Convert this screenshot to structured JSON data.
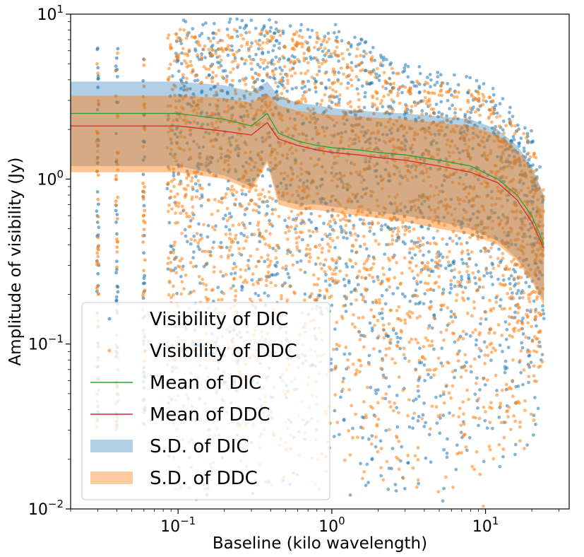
{
  "chart_data": {
    "type": "scatter",
    "xscale": "log",
    "yscale": "log",
    "xlabel": "Baseline (kilo wavelength)",
    "ylabel": "Amplitude of visibility (Jy)",
    "xlim": [
      0.02,
      35
    ],
    "ylim": [
      0.01,
      10
    ],
    "xticks": [
      {
        "value": 0.1,
        "base": "10",
        "exp": "−1"
      },
      {
        "value": 1,
        "base": "10",
        "exp": "0"
      },
      {
        "value": 10,
        "base": "10",
        "exp": "1"
      }
    ],
    "yticks": [
      {
        "value": 0.01,
        "base": "10",
        "exp": "−2"
      },
      {
        "value": 0.1,
        "base": "10",
        "exp": "−1"
      },
      {
        "value": 1,
        "base": "10",
        "exp": "0"
      },
      {
        "value": 10,
        "base": "10",
        "exp": "1"
      }
    ],
    "colors": {
      "dic": "#1f77b4",
      "ddc": "#ff7f0e",
      "mean_dic": "#2ca02c",
      "mean_ddc": "#d62728"
    },
    "legend_position": "lower-left",
    "legend": [
      {
        "label": "Visibility of DIC",
        "kind": "marker",
        "series": "dic"
      },
      {
        "label": "Visibility of DDC",
        "kind": "marker",
        "series": "ddc"
      },
      {
        "label": "Mean of DIC",
        "kind": "line",
        "series": "mean_dic"
      },
      {
        "label": "Mean of DDC",
        "kind": "line",
        "series": "mean_ddc"
      },
      {
        "label": "S.D. of DIC",
        "kind": "patch",
        "series": "dic"
      },
      {
        "label": "S.D. of DDC",
        "kind": "patch",
        "series": "ddc"
      }
    ],
    "mean_dic": {
      "x": [
        0.02,
        0.1,
        0.2,
        0.3,
        0.38,
        0.45,
        0.6,
        0.8,
        1.0,
        1.5,
        2.0,
        3.0,
        5.0,
        8.0,
        12.0,
        16.0,
        20.0,
        24.0
      ],
      "y": [
        2.5,
        2.5,
        2.3,
        2.1,
        2.5,
        1.9,
        1.7,
        1.6,
        1.55,
        1.5,
        1.45,
        1.4,
        1.3,
        1.2,
        1.0,
        0.8,
        0.6,
        0.4
      ]
    },
    "mean_ddc": {
      "x": [
        0.02,
        0.1,
        0.2,
        0.3,
        0.38,
        0.45,
        0.6,
        0.8,
        1.0,
        1.5,
        2.0,
        3.0,
        5.0,
        8.0,
        12.0,
        16.0,
        20.0,
        24.0
      ],
      "y": [
        2.1,
        2.1,
        1.95,
        1.85,
        2.2,
        1.75,
        1.6,
        1.5,
        1.45,
        1.4,
        1.35,
        1.3,
        1.2,
        1.1,
        0.95,
        0.75,
        0.55,
        0.38
      ]
    },
    "sd_dic": {
      "x": [
        0.02,
        0.1,
        0.2,
        0.3,
        0.38,
        0.45,
        0.6,
        0.8,
        1.0,
        1.5,
        2.0,
        3.0,
        5.0,
        8.0,
        12.0,
        16.0,
        20.0,
        24.0
      ],
      "lower": [
        1.2,
        1.2,
        1.05,
        0.9,
        1.3,
        0.75,
        0.7,
        0.7,
        0.68,
        0.65,
        0.63,
        0.6,
        0.55,
        0.5,
        0.42,
        0.33,
        0.25,
        0.18
      ],
      "upper": [
        3.9,
        3.9,
        3.7,
        3.4,
        3.9,
        3.2,
        2.9,
        2.8,
        2.7,
        2.6,
        2.55,
        2.5,
        2.4,
        2.3,
        2.0,
        1.6,
        1.2,
        0.8
      ]
    },
    "sd_ddc": {
      "x": [
        0.02,
        0.1,
        0.2,
        0.3,
        0.38,
        0.45,
        0.6,
        0.8,
        1.0,
        1.5,
        2.0,
        3.0,
        5.0,
        8.0,
        12.0,
        16.0,
        20.0,
        24.0
      ],
      "lower": [
        1.1,
        1.1,
        1.0,
        0.85,
        1.25,
        0.7,
        0.65,
        0.65,
        0.63,
        0.6,
        0.58,
        0.55,
        0.5,
        0.46,
        0.4,
        0.32,
        0.24,
        0.17
      ],
      "upper": [
        3.2,
        3.2,
        3.1,
        2.9,
        3.3,
        2.8,
        2.6,
        2.5,
        2.45,
        2.4,
        2.35,
        2.3,
        2.2,
        2.1,
        1.85,
        1.5,
        1.15,
        0.78
      ]
    },
    "visibility_envelope": {
      "note": "approximate extent of the visibility point clouds",
      "x": [
        0.03,
        0.1,
        0.3,
        1,
        3,
        10,
        20,
        24
      ],
      "ymax": [
        8,
        9.5,
        9.5,
        9,
        5,
        4,
        2,
        1
      ],
      "ymin": [
        0.01,
        0.01,
        0.01,
        0.01,
        0.01,
        0.01,
        0.02,
        0.05
      ],
      "columns_x": [
        0.03,
        0.04,
        0.06
      ]
    }
  }
}
